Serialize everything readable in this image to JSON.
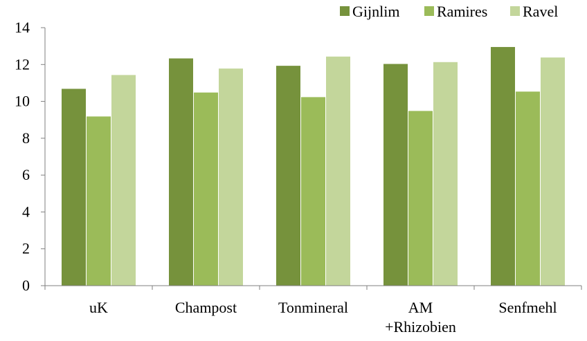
{
  "chart_data": {
    "type": "bar",
    "categories": [
      "uK",
      "Champost",
      "Tonmineral",
      "AM\n+Rhizobien",
      "Senfmehl"
    ],
    "series": [
      {
        "name": "Gijnlim",
        "color": "#76923c",
        "values": [
          10.7,
          12.35,
          11.95,
          12.05,
          12.97
        ]
      },
      {
        "name": "Ramires",
        "color": "#9bbb59",
        "values": [
          9.2,
          10.5,
          10.25,
          9.5,
          10.55
        ]
      },
      {
        "name": "Ravel",
        "color": "#c3d69b",
        "values": [
          11.45,
          11.8,
          12.45,
          12.15,
          12.4
        ]
      }
    ],
    "title": "",
    "xlabel": "",
    "ylabel": "",
    "ylim": [
      0,
      14
    ],
    "yticks": [
      0,
      2,
      4,
      6,
      8,
      10,
      12,
      14
    ],
    "grid": false,
    "legend_position": "top-right",
    "bar_border_color": "#ffffff"
  }
}
